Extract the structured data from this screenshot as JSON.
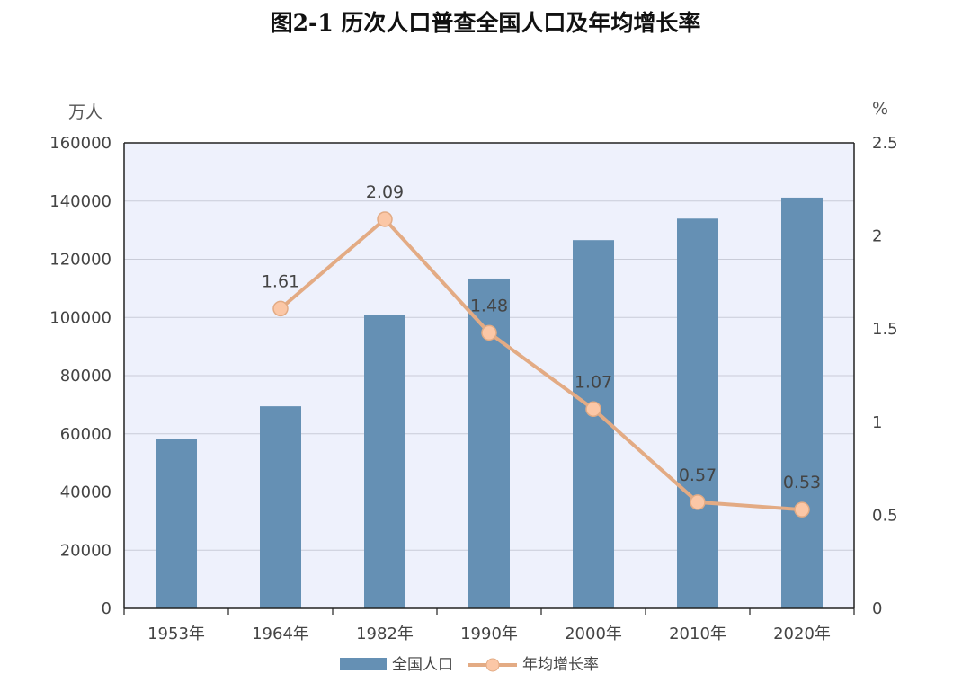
{
  "title": "图2-1 历次人口普查全国人口及年均增长率",
  "chart_data": {
    "type": "bar",
    "categories": [
      "1953年",
      "1964年",
      "1982年",
      "1990年",
      "2000年",
      "2010年",
      "2020年"
    ],
    "series": [
      {
        "name": "全国人口",
        "type": "bar",
        "axis": "left",
        "values": [
          58260,
          69458,
          100818,
          113368,
          126583,
          133972,
          141178
        ]
      },
      {
        "name": "年均增长率",
        "type": "line",
        "axis": "right",
        "values": [
          null,
          1.61,
          2.09,
          1.48,
          1.07,
          0.57,
          0.53
        ],
        "data_labels": [
          "",
          "1.61",
          "2.09",
          "1.48",
          "1.07",
          "0.57",
          "0.53"
        ]
      }
    ],
    "y_left": {
      "unit": "万人",
      "ylim": [
        0,
        160000
      ],
      "ticks": [
        "0",
        "20000",
        "40000",
        "60000",
        "80000",
        "100000",
        "120000",
        "140000",
        "160000"
      ]
    },
    "y_right": {
      "unit": "%",
      "ylim": [
        0,
        2.5
      ],
      "ticks": [
        "0",
        "0.5",
        "1",
        "1.5",
        "2",
        "2.5"
      ]
    },
    "grid": true,
    "legend_position": "bottom",
    "colors": {
      "bar": "#6590b4",
      "line": "#e3ab84",
      "marker_fill": "#fbc7a6",
      "marker_stroke": "#e3ab84",
      "plot_bg": "#eef1fc",
      "grid": "#c9ccd8"
    }
  }
}
